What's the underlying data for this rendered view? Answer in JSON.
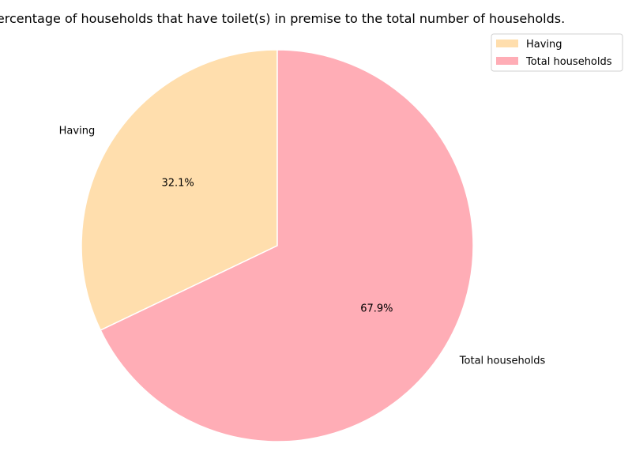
{
  "chart_data": {
    "type": "pie",
    "title": "Percentage of households that have toilet(s) in premise to the total number of households.",
    "slices": [
      {
        "label": "Having",
        "percent": 32.1,
        "pct_label": "32.1%",
        "color": "#FFDEAD"
      },
      {
        "label": "Total households",
        "percent": 67.9,
        "pct_label": "67.9%",
        "color": "#FFADB6"
      }
    ],
    "start_angle_deg": 90,
    "direction": "counterclockwise",
    "wedge_edge_color": "#ffffff",
    "legend": {
      "placement": "top-right",
      "entries": [
        "Having",
        "Total households"
      ]
    }
  }
}
